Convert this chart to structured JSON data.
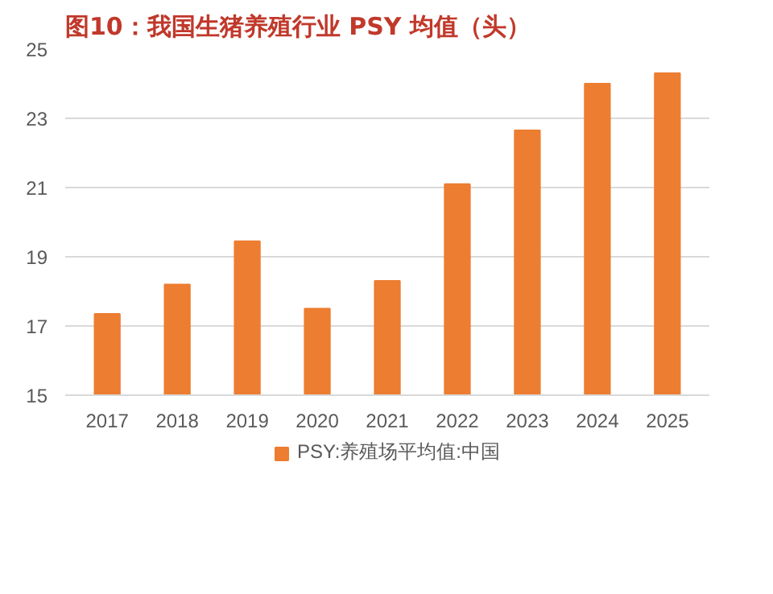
{
  "chart_data": {
    "type": "bar",
    "title": "图10：我国生猪养殖行业 PSY 均值（头）",
    "categories": [
      "2017",
      "2018",
      "2019",
      "2020",
      "2021",
      "2022",
      "2023",
      "2024",
      "2025"
    ],
    "series": [
      {
        "name": "PSY:养殖场平均值:中国",
        "color": "#ed7d31",
        "values": [
          17.35,
          18.2,
          19.45,
          17.5,
          18.3,
          21.1,
          22.65,
          24.0,
          24.3
        ]
      }
    ],
    "ylim": [
      15,
      25
    ],
    "yticks": [
      15,
      17,
      19,
      21,
      23,
      25
    ],
    "grid": "y",
    "legend": "bottom"
  }
}
